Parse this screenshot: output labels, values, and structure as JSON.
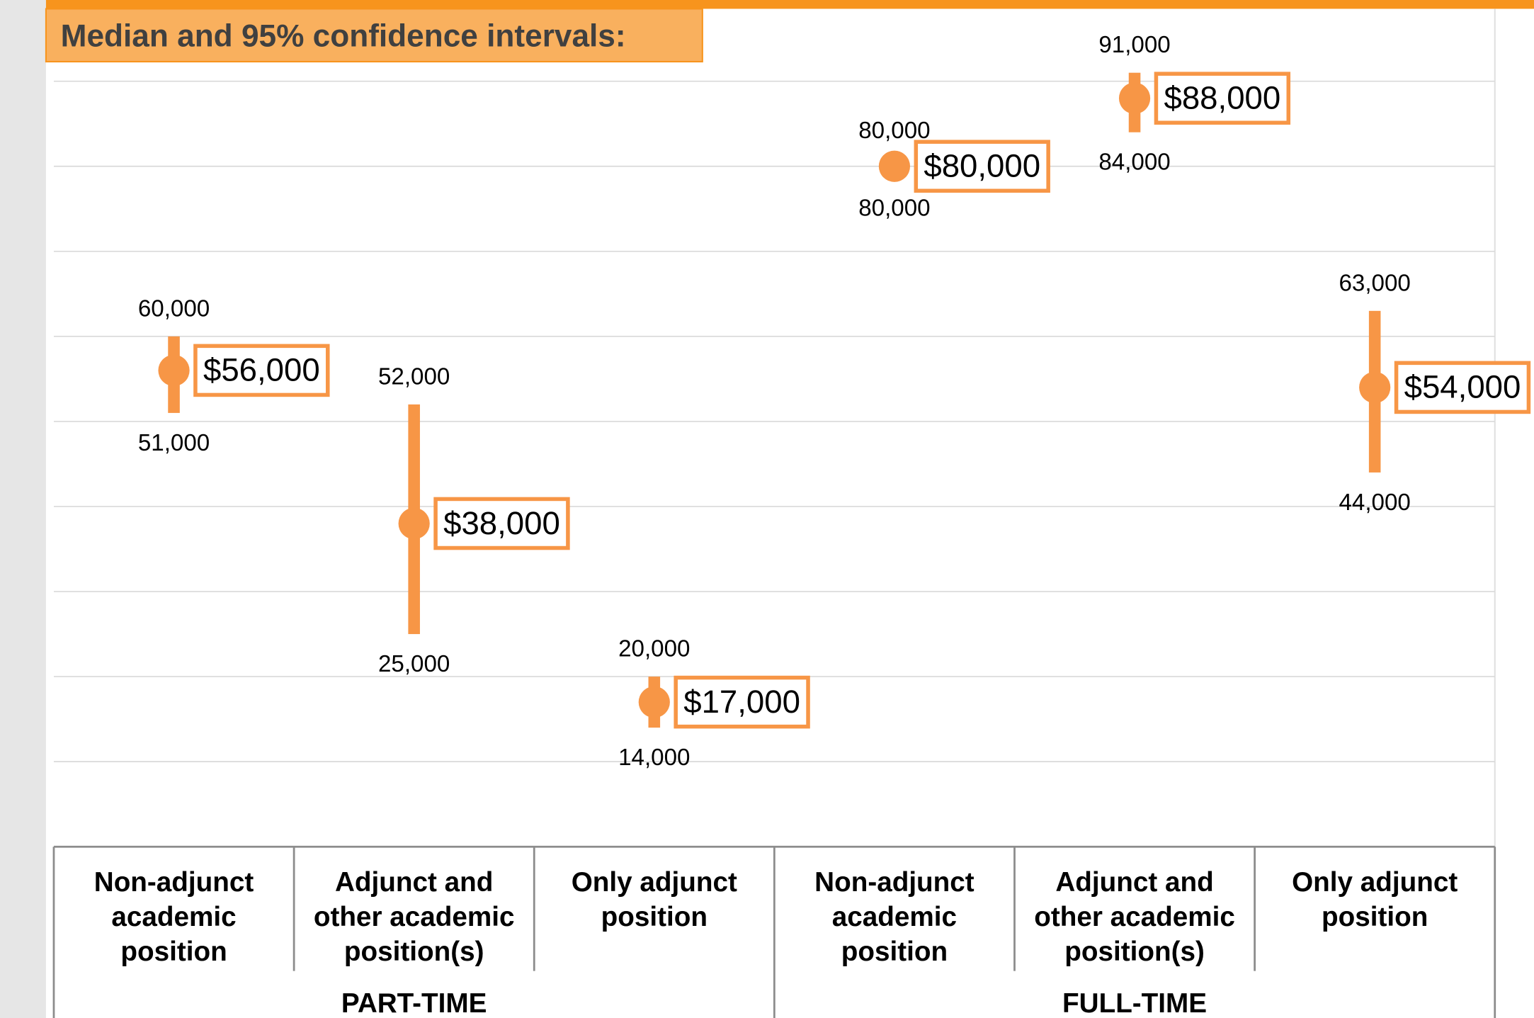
{
  "chart_data": {
    "type": "dot-interval",
    "title": "Median and 95% confidence intervals:",
    "categories": [
      [
        "Non-adjunct",
        "academic",
        "position"
      ],
      [
        "Adjunct and",
        "other academic",
        "position(s)"
      ],
      [
        "Only adjunct",
        "position"
      ],
      [
        "Non-adjunct",
        "academic",
        "position"
      ],
      [
        "Adjunct and",
        "other academic",
        "position(s)"
      ],
      [
        "Only adjunct",
        "position"
      ]
    ],
    "groups": [
      "PART-TIME",
      "FULL-TIME"
    ],
    "values": [
      56000,
      38000,
      17000,
      80000,
      88000,
      54000
    ],
    "value_labels": [
      "$56,000",
      "$38,000",
      "$17,000",
      "$80,000",
      "$88,000",
      "$54,000"
    ],
    "ci_low": [
      51000,
      25000,
      14000,
      80000,
      84000,
      44000
    ],
    "ci_low_labels": [
      "51,000",
      "25,000",
      "14,000",
      "80,000",
      "84,000",
      "44,000"
    ],
    "ci_high": [
      60000,
      52000,
      20000,
      80000,
      91000,
      63000
    ],
    "ci_high_labels": [
      "60,000",
      "52,000",
      "20,000",
      "80,000",
      "91,000",
      "63,000"
    ],
    "color": "#f79646",
    "ylim": [
      0,
      90000
    ],
    "yticks": [
      0,
      10000,
      20000,
      30000,
      40000,
      50000,
      60000,
      70000,
      80000,
      90000
    ],
    "grid": true
  }
}
